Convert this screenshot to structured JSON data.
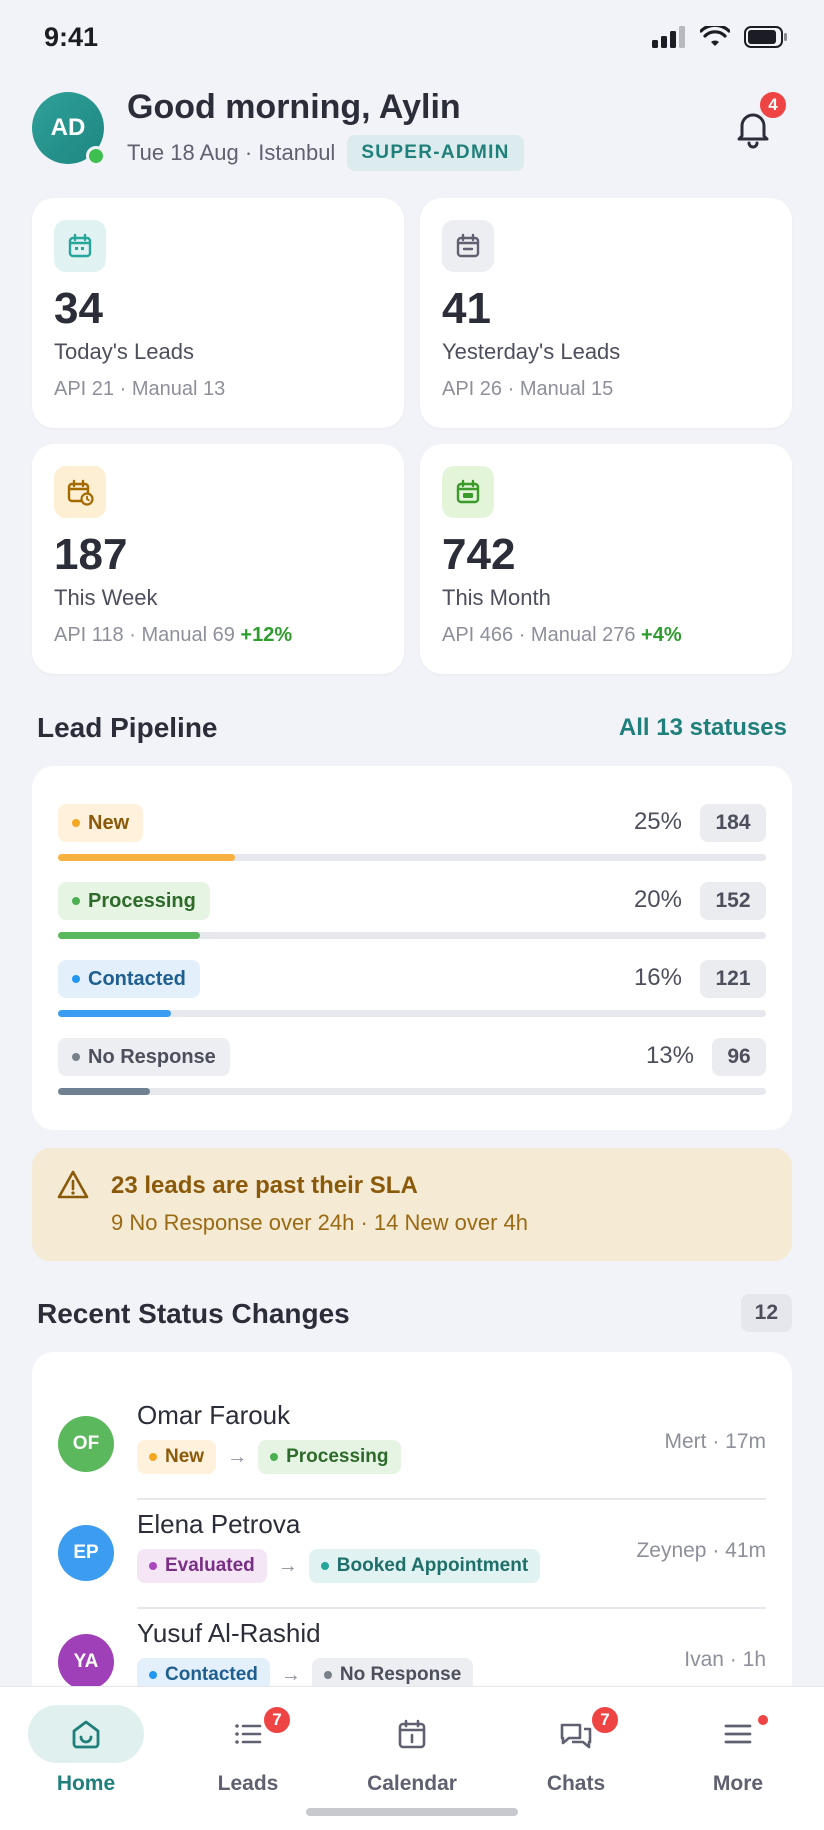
{
  "status_bar": {
    "time": "9:41"
  },
  "header": {
    "avatar_initials": "AD",
    "greeting": "Good morning, Aylin",
    "date_location": "Tue 18 Aug · Istanbul",
    "role": "SUPER-ADMIN",
    "notification_count": "4"
  },
  "stats": [
    {
      "value": "34",
      "label": "Today's Leads",
      "sub": "API 21 · Manual 13",
      "delta": "",
      "icon": "calendar-icon",
      "icon_bg": "#e0f2f1",
      "icon_color": "#26a69a"
    },
    {
      "value": "41",
      "label": "Yesterday's Leads",
      "sub": "API 26 · Manual 15",
      "delta": "",
      "icon": "calendar-minus-icon",
      "icon_bg": "#eceef1",
      "icon_color": "#5f6170"
    },
    {
      "value": "187",
      "label": "This Week",
      "sub": "API 118 · Manual 69",
      "delta": "+12%",
      "icon": "calendar-clock-icon",
      "icon_bg": "#fcefd4",
      "icon_color": "#a36a00"
    },
    {
      "value": "742",
      "label": "This Month",
      "sub": "API 466 · Manual 276",
      "delta": "+4%",
      "icon": "calendar-icon",
      "icon_bg": "#e3f4d9",
      "icon_color": "#3a9a2a"
    }
  ],
  "pipeline": {
    "title": "Lead Pipeline",
    "link": "All 13 statuses",
    "rows": [
      {
        "status": "New",
        "percent": "25%",
        "count": "184",
        "fill_fraction": 0.25,
        "pill_bg": "#fff1dc",
        "pill_color": "#8a5a0a",
        "dot": "#f5a623",
        "bar": "#f8b040"
      },
      {
        "status": "Processing",
        "percent": "20%",
        "count": "152",
        "fill_fraction": 0.2,
        "pill_bg": "#e6f4e4",
        "pill_color": "#2e6b2a",
        "dot": "#4caf50",
        "bar": "#5cb85c"
      },
      {
        "status": "Contacted",
        "percent": "16%",
        "count": "121",
        "fill_fraction": 0.16,
        "pill_bg": "#e3f0fb",
        "pill_color": "#1f5f8f",
        "dot": "#2196f3",
        "bar": "#3c9cf0"
      },
      {
        "status": "No Response",
        "percent": "13%",
        "count": "96",
        "fill_fraction": 0.13,
        "pill_bg": "#eceef1",
        "pill_color": "#4d4f5c",
        "dot": "#78808a",
        "bar": "#6f8090"
      }
    ]
  },
  "sla": {
    "title": "23 leads are past their SLA",
    "detail": "9 No Response over 24h · 14 New over 4h"
  },
  "recent": {
    "title": "Recent Status Changes",
    "count": "12",
    "items": [
      {
        "initials": "OF",
        "avatar_bg": "#5cb85c",
        "name": "Omar Farouk",
        "from": {
          "label": "New",
          "bg": "#fff1dc",
          "color": "#8a5a0a",
          "dot": "#f5a623"
        },
        "to": {
          "label": "Processing",
          "bg": "#e6f4e4",
          "color": "#2e6b2a",
          "dot": "#4caf50"
        },
        "meta": "Mert · 17m"
      },
      {
        "initials": "EP",
        "avatar_bg": "#3c9cf0",
        "name": "Elena Petrova",
        "from": {
          "label": "Evaluated",
          "bg": "#f5e6f6",
          "color": "#7a2f86",
          "dot": "#ab47bc"
        },
        "to": {
          "label": "Booked Appointment",
          "bg": "#e0f2f1",
          "color": "#1f6f6a",
          "dot": "#26a69a"
        },
        "meta": "Zeynep · 41m"
      },
      {
        "initials": "YA",
        "avatar_bg": "#a040b8",
        "name": "Yusuf Al-Rashid",
        "from": {
          "label": "Contacted",
          "bg": "#e3f0fb",
          "color": "#1f5f8f",
          "dot": "#2196f3"
        },
        "to": {
          "label": "No Response",
          "bg": "#eceef1",
          "color": "#4d4f5c",
          "dot": "#78808a"
        },
        "meta": "Ivan · 1h"
      }
    ]
  },
  "tabs": [
    {
      "label": "Home",
      "icon": "home-icon",
      "active": true,
      "badge": ""
    },
    {
      "label": "Leads",
      "icon": "list-icon",
      "active": false,
      "badge": "7"
    },
    {
      "label": "Calendar",
      "icon": "calendar-icon",
      "active": false,
      "badge": ""
    },
    {
      "label": "Chats",
      "icon": "chat-icon",
      "active": false,
      "badge": "7"
    },
    {
      "label": "More",
      "icon": "menu-icon",
      "active": false,
      "badge": "dot"
    }
  ],
  "colors": {
    "accent": "#1f7f7a",
    "danger": "#ef4444",
    "positive": "#2f9c2f"
  }
}
